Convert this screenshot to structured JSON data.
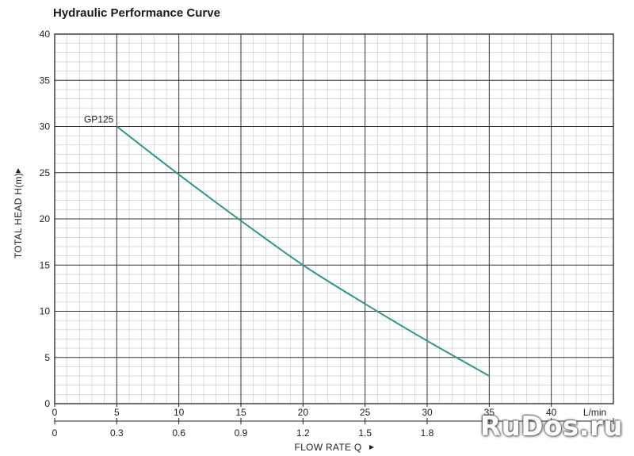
{
  "chart_data": {
    "type": "line",
    "title": "Hydraulic Performance Curve",
    "xlabel": "FLOW RATE Q",
    "ylabel": "TOTAL HEAD H(m)",
    "x_unit": "L/min",
    "xlim": [
      0,
      45
    ],
    "ylim": [
      0,
      40
    ],
    "x_ticks": [
      0,
      5,
      10,
      15,
      20,
      25,
      30,
      35,
      40
    ],
    "y_ticks": [
      0,
      5,
      10,
      15,
      20,
      25,
      30,
      35,
      40
    ],
    "x2_ticks": [
      {
        "x": 0,
        "label": "0"
      },
      {
        "x": 5,
        "label": "0.3"
      },
      {
        "x": 10,
        "label": "0.6"
      },
      {
        "x": 15,
        "label": "0.9"
      },
      {
        "x": 20,
        "label": "1.2"
      },
      {
        "x": 25,
        "label": "1.5"
      },
      {
        "x": 30,
        "label": "1.8"
      }
    ],
    "grid": true,
    "series": [
      {
        "name": "GP125",
        "color": "#2a9a8e",
        "points": [
          [
            5,
            30
          ],
          [
            10,
            24.8
          ],
          [
            15,
            19.8
          ],
          [
            20,
            15
          ],
          [
            25,
            10.8
          ],
          [
            30,
            6.8
          ],
          [
            35,
            3
          ]
        ]
      }
    ]
  },
  "watermark": "RuDos.ru"
}
